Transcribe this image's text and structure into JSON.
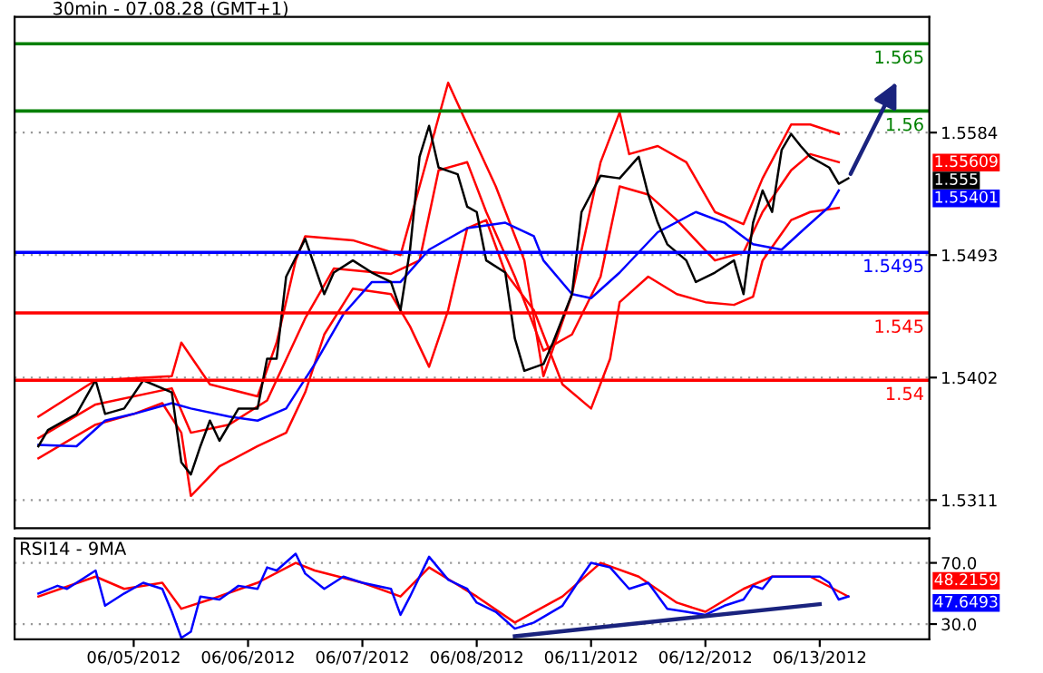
{
  "chart_data": [
    {
      "type": "line",
      "title": "30min - 07.08.28 (GMT+1)",
      "ylim": [
        1.529,
        1.567
      ],
      "yticks": [
        1.5584,
        1.5493,
        1.5402,
        1.5311
      ],
      "tick_labels": "y",
      "grid": "y",
      "categories": [
        null,
        null,
        null,
        null,
        null,
        null,
        null,
        null,
        null,
        null,
        null,
        null,
        null,
        null,
        null,
        null,
        null,
        null,
        null,
        null,
        null,
        null,
        null,
        null,
        null,
        null,
        null,
        null,
        null,
        null,
        null,
        null,
        null,
        null,
        null,
        null,
        null,
        null,
        null,
        null,
        null,
        null,
        null,
        null,
        null,
        null,
        null,
        null,
        null,
        null,
        null,
        null,
        null,
        null,
        null,
        null,
        null,
        null,
        null,
        null,
        null,
        null,
        null,
        null,
        null,
        null,
        null,
        null,
        null,
        null,
        null,
        null,
        null,
        null,
        null,
        null,
        null,
        null,
        null,
        null,
        null,
        null,
        null,
        null,
        null,
        null,
        null,
        null,
        null,
        null,
        null,
        null,
        null,
        null,
        null,
        null
      ],
      "series": [
        {
          "color": "#ff0000",
          "values": [
            null,
            null,
            1.5373,
            null,
            null,
            null,
            null,
            null,
            1.54,
            null,
            null,
            null,
            null,
            null,
            null,
            null,
            1.5403,
            1.5428,
            null,
            null,
            1.5397,
            null,
            null,
            null,
            null,
            1.5388,
            null,
            1.5428,
            null,
            1.5489,
            1.5507,
            null,
            null,
            null,
            null,
            1.5504,
            null,
            null,
            null,
            null,
            1.5493,
            null,
            1.5544,
            null,
            null,
            1.5621,
            null,
            1.559,
            null,
            null,
            1.5544,
            null,
            null,
            1.5489,
            null,
            1.5403,
            null,
            null,
            1.5464,
            null,
            null,
            1.5562,
            null,
            1.5599,
            1.5568,
            null,
            null,
            1.5574,
            null,
            null,
            1.5562,
            null,
            null,
            1.5525,
            null,
            null,
            1.5516,
            null,
            1.555,
            null,
            null,
            1.559,
            null,
            1.559,
            null,
            null,
            1.5583,
            null,
            null,
            null,
            null,
            null,
            null,
            null,
            null,
            null
          ]
        },
        {
          "color": "#ff0000",
          "values": [
            null,
            null,
            1.5342,
            null,
            null,
            null,
            null,
            null,
            1.5367,
            null,
            null,
            null,
            1.5375,
            null,
            null,
            1.5383,
            null,
            1.5361,
            1.5314,
            null,
            null,
            1.5336,
            null,
            null,
            null,
            1.5351,
            null,
            null,
            1.5361,
            null,
            1.5391,
            null,
            1.5434,
            null,
            null,
            1.5468,
            null,
            null,
            null,
            1.5464,
            null,
            1.544,
            null,
            1.541,
            null,
            1.5452,
            null,
            1.5513,
            null,
            1.5519,
            null,
            1.548,
            null,
            null,
            1.5452,
            null,
            null,
            1.5397,
            null,
            null,
            1.5379,
            null,
            1.5416,
            1.5458,
            null,
            null,
            1.5477,
            null,
            null,
            1.5464,
            null,
            null,
            1.5458,
            null,
            null,
            1.5456,
            null,
            1.5462,
            1.5489,
            null,
            null,
            1.5519,
            null,
            1.5525,
            null,
            null,
            1.5528,
            null,
            null,
            null,
            null,
            null,
            null,
            null,
            null,
            null
          ]
        },
        {
          "color": "#ff0000",
          "values": [
            null,
            null,
            1.5357,
            null,
            null,
            null,
            null,
            null,
            1.5382,
            null,
            null,
            null,
            null,
            null,
            null,
            null,
            1.5394,
            null,
            1.5361,
            null,
            null,
            null,
            1.5367,
            null,
            null,
            null,
            1.5385,
            null,
            null,
            null,
            1.5446,
            null,
            null,
            1.5483,
            null,
            null,
            null,
            null,
            null,
            1.5479,
            null,
            null,
            1.5489,
            null,
            1.5556,
            null,
            null,
            1.5562,
            null,
            1.5525,
            null,
            null,
            1.5477,
            null,
            null,
            1.5422,
            null,
            null,
            1.5434,
            null,
            null,
            1.5477,
            null,
            1.5544,
            null,
            null,
            1.5538,
            null,
            null,
            1.5519,
            null,
            null,
            null,
            1.5489,
            null,
            null,
            1.5495,
            null,
            1.5525,
            null,
            null,
            1.5556,
            null,
            1.5568,
            null,
            null,
            1.5562,
            null,
            null,
            null,
            null,
            null,
            null,
            null,
            null,
            null
          ]
        },
        {
          "color": "#0000ff",
          "values": [
            null,
            null,
            1.5352,
            null,
            null,
            null,
            1.5351,
            null,
            null,
            1.537,
            null,
            null,
            1.5375,
            null,
            null,
            null,
            1.5383,
            null,
            1.5379,
            null,
            null,
            null,
            1.5373,
            null,
            null,
            1.537,
            null,
            null,
            1.5379,
            null,
            null,
            1.5412,
            null,
            null,
            1.5449,
            null,
            null,
            1.5473,
            null,
            null,
            1.5473,
            null,
            null,
            1.5497,
            null,
            null,
            null,
            1.5513,
            null,
            null,
            null,
            1.5517,
            null,
            null,
            1.5507,
            1.5489,
            null,
            null,
            1.5464,
            null,
            1.5461,
            null,
            null,
            1.548,
            null,
            null,
            null,
            1.551,
            null,
            null,
            null,
            1.5525,
            null,
            null,
            1.5517,
            null,
            null,
            1.5501,
            null,
            null,
            1.5497,
            null,
            1.551,
            null,
            null,
            1.5529,
            1.5541,
            null,
            null,
            null,
            null,
            null,
            null,
            null,
            null,
            null
          ]
        },
        {
          "color": "#000000",
          "values": [
            null,
            null,
            1.5351,
            1.5363,
            null,
            null,
            1.5375,
            null,
            1.54,
            1.5375,
            null,
            1.5379,
            null,
            1.54,
            null,
            null,
            1.5391,
            1.5339,
            1.533,
            1.5351,
            1.537,
            1.5355,
            null,
            1.5379,
            null,
            1.5379,
            1.5416,
            1.5416,
            1.5477,
            null,
            1.5505,
            null,
            1.5464,
            1.548,
            null,
            1.5489,
            null,
            1.548,
            null,
            1.5473,
            1.5452,
            1.5497,
            1.5566,
            1.5589,
            1.5558,
            null,
            1.5553,
            1.5529,
            1.5525,
            1.5489,
            null,
            1.548,
            1.5431,
            1.5407,
            null,
            1.5412,
            1.5428,
            null,
            1.5464,
            1.5525,
            null,
            1.5552,
            null,
            1.555,
            null,
            1.5566,
            1.5538,
            1.5517,
            1.5501,
            null,
            1.5489,
            1.5473,
            null,
            1.548,
            null,
            1.5489,
            1.5464,
            1.5517,
            1.5541,
            1.5525,
            1.5571,
            1.5583,
            1.5574,
            1.5566,
            null,
            1.5558,
            1.5546,
            1.555,
            null,
            null,
            null,
            null,
            null,
            null,
            null,
            null
          ]
        }
      ],
      "ref_lines": [
        {
          "axis": "y",
          "value": 1.565,
          "label": "1.565",
          "color": "#008000"
        },
        {
          "axis": "y",
          "value": 1.56,
          "label": "1.56",
          "color": "#008000"
        },
        {
          "axis": "y",
          "value": 1.5495,
          "label": "1.5495",
          "color": "#0000ff"
        },
        {
          "axis": "y",
          "value": 1.545,
          "label": "1.545",
          "color": "#ff0000"
        },
        {
          "axis": "y",
          "value": 1.54,
          "label": "1.54",
          "color": "#ff0000"
        }
      ],
      "annotations": [
        "1.55609",
        "1.555",
        "1.55401"
      ]
    },
    {
      "type": "line",
      "title": "RSI14 - 9MA",
      "ylim": [
        20,
        86
      ],
      "yticks": [
        {
          "value": 70,
          "label": "70.0"
        },
        {
          "value": 30,
          "label": "30.0"
        }
      ],
      "grid": "y",
      "categories": [
        null,
        null,
        null,
        null,
        null,
        null,
        null,
        null,
        null,
        null,
        null,
        null,
        "06/05/2012",
        null,
        null,
        null,
        null,
        null,
        null,
        null,
        null,
        null,
        null,
        null,
        "06/06/2012",
        null,
        null,
        null,
        null,
        null,
        null,
        null,
        null,
        null,
        null,
        null,
        "06/07/2012",
        null,
        null,
        null,
        null,
        null,
        null,
        null,
        null,
        null,
        null,
        null,
        "06/08/2012",
        null,
        null,
        null,
        null,
        null,
        null,
        null,
        null,
        null,
        null,
        null,
        "06/11/2012",
        null,
        null,
        null,
        null,
        null,
        null,
        null,
        null,
        null,
        null,
        null,
        "06/12/2012",
        null,
        null,
        null,
        null,
        null,
        null,
        null,
        null,
        null,
        null,
        null,
        "06/13/2012",
        null,
        null,
        null,
        null,
        null,
        null,
        null,
        null,
        null,
        null,
        null
      ],
      "series": [
        {
          "color": "#ff0000",
          "values": [
            null,
            null,
            48,
            null,
            null,
            null,
            null,
            null,
            61,
            null,
            null,
            53,
            null,
            null,
            null,
            57,
            null,
            40,
            null,
            null,
            46,
            null,
            null,
            null,
            null,
            57,
            null,
            null,
            null,
            70,
            null,
            65,
            null,
            null,
            null,
            null,
            57,
            null,
            null,
            null,
            48,
            null,
            null,
            67,
            null,
            null,
            null,
            null,
            48,
            null,
            null,
            null,
            31,
            null,
            null,
            null,
            null,
            48,
            null,
            null,
            null,
            70,
            null,
            null,
            null,
            61,
            null,
            null,
            null,
            44,
            null,
            null,
            38,
            null,
            null,
            null,
            53,
            null,
            null,
            61,
            null,
            null,
            null,
            61,
            null,
            null,
            null,
            48,
            null,
            null,
            null,
            null,
            null,
            null,
            null,
            null
          ]
        },
        {
          "color": "#0000ff",
          "values": [
            null,
            null,
            50,
            null,
            55,
            53,
            null,
            null,
            65,
            42,
            null,
            50,
            null,
            57,
            null,
            53,
            38,
            21,
            25,
            48,
            null,
            46,
            null,
            55,
            null,
            53,
            67,
            65,
            null,
            76,
            63,
            null,
            53,
            null,
            61,
            null,
            57,
            null,
            null,
            53,
            36,
            48,
            null,
            74,
            null,
            59,
            null,
            53,
            44,
            null,
            38,
            null,
            27,
            null,
            31,
            null,
            null,
            42,
            null,
            61,
            70,
            null,
            67,
            null,
            53,
            null,
            57,
            null,
            40,
            null,
            38,
            null,
            36,
            null,
            42,
            null,
            46,
            55,
            53,
            61,
            null,
            null,
            61,
            null,
            61,
            57,
            46,
            48,
            null,
            null,
            null,
            null,
            null,
            null,
            null,
            null
          ]
        },
        {
          "color": "#1a237e",
          "values": [
            null,
            null,
            null,
            null,
            null,
            null,
            null,
            null,
            null,
            null,
            null,
            null,
            null,
            null,
            null,
            null,
            null,
            null,
            null,
            null,
            null,
            null,
            null,
            null,
            null,
            null,
            null,
            null,
            null,
            null,
            null,
            null,
            null,
            null,
            null,
            null,
            null,
            null,
            null,
            null,
            null,
            null,
            null,
            null,
            null,
            null,
            null,
            null,
            null,
            null,
            null,
            null,
            22,
            null,
            null,
            null,
            null,
            null,
            null,
            null,
            null,
            null,
            null,
            null,
            null,
            null,
            null,
            null,
            null,
            null,
            null,
            null,
            null,
            null,
            null,
            null,
            null,
            null,
            null,
            null,
            null,
            null,
            null,
            null,
            43,
            null,
            null,
            null,
            null,
            null,
            null,
            null,
            null,
            null,
            null,
            null
          ]
        }
      ],
      "annotations": [
        "48.2159",
        "47.6493"
      ]
    }
  ]
}
